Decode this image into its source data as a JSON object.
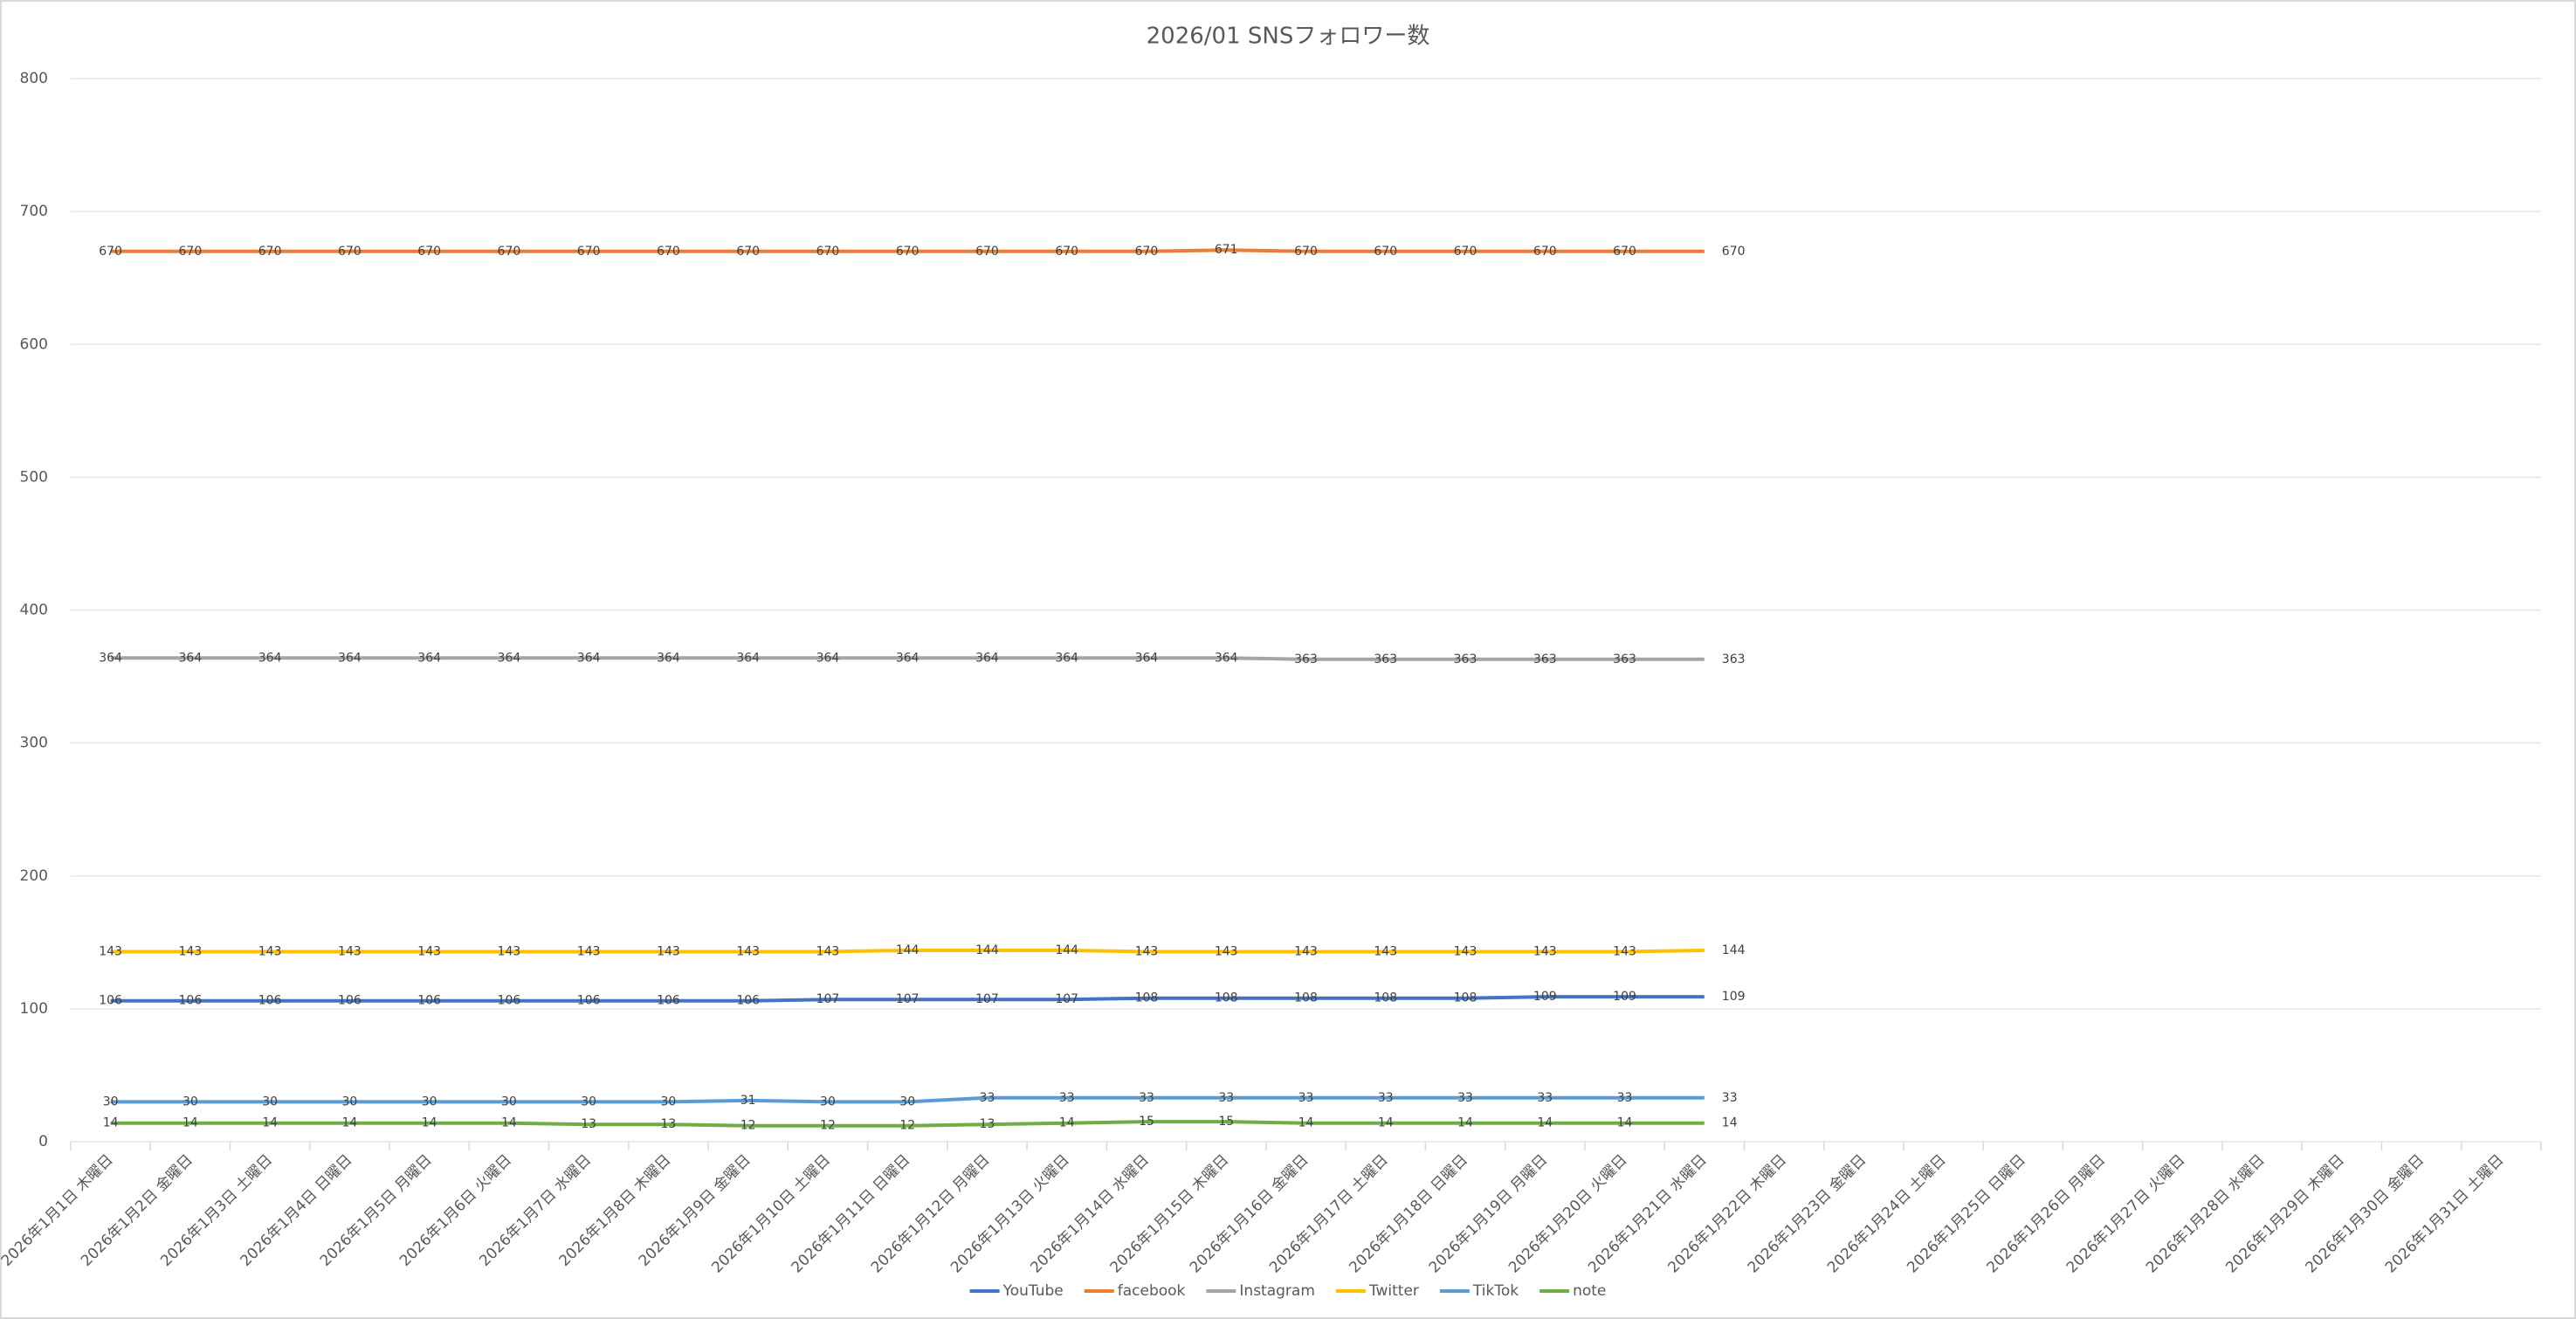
{
  "chart_data": {
    "type": "line",
    "title": "2026/01 SNSフォロワー数",
    "categories": [
      "2026年1月1日 木曜日",
      "2026年1月2日 金曜日",
      "2026年1月3日 土曜日",
      "2026年1月4日 日曜日",
      "2026年1月5日 月曜日",
      "2026年1月6日 火曜日",
      "2026年1月7日 水曜日",
      "2026年1月8日 木曜日",
      "2026年1月9日 金曜日",
      "2026年1月10日 土曜日",
      "2026年1月11日 日曜日",
      "2026年1月12日 月曜日",
      "2026年1月13日 火曜日",
      "2026年1月14日 水曜日",
      "2026年1月15日 木曜日",
      "2026年1月16日 金曜日",
      "2026年1月17日 土曜日",
      "2026年1月18日 日曜日",
      "2026年1月19日 月曜日",
      "2026年1月20日 火曜日",
      "2026年1月21日 水曜日",
      "2026年1月22日 木曜日",
      "2026年1月23日 金曜日",
      "2026年1月24日 土曜日",
      "2026年1月25日 日曜日",
      "2026年1月26日 月曜日",
      "2026年1月27日 火曜日",
      "2026年1月28日 水曜日",
      "2026年1月29日 木曜日",
      "2026年1月30日 金曜日",
      "2026年1月31日 土曜日"
    ],
    "series": [
      {
        "name": "YouTube",
        "color": "#4472c4",
        "values": [
          106,
          106,
          106,
          106,
          106,
          106,
          106,
          106,
          106,
          107,
          107,
          107,
          107,
          108,
          108,
          108,
          108,
          108,
          109,
          109,
          109,
          null,
          null,
          null,
          null,
          null,
          null,
          null,
          null,
          null,
          null
        ]
      },
      {
        "name": "facebook",
        "color": "#ed7d31",
        "values": [
          670,
          670,
          670,
          670,
          670,
          670,
          670,
          670,
          670,
          670,
          670,
          670,
          670,
          670,
          671,
          670,
          670,
          670,
          670,
          670,
          670,
          null,
          null,
          null,
          null,
          null,
          null,
          null,
          null,
          null,
          null
        ]
      },
      {
        "name": "Instagram",
        "color": "#a5a5a5",
        "values": [
          364,
          364,
          364,
          364,
          364,
          364,
          364,
          364,
          364,
          364,
          364,
          364,
          364,
          364,
          364,
          363,
          363,
          363,
          363,
          363,
          363,
          null,
          null,
          null,
          null,
          null,
          null,
          null,
          null,
          null,
          null
        ]
      },
      {
        "name": "Twitter",
        "color": "#ffc000",
        "values": [
          143,
          143,
          143,
          143,
          143,
          143,
          143,
          143,
          143,
          143,
          144,
          144,
          144,
          143,
          143,
          143,
          143,
          143,
          143,
          143,
          144,
          null,
          null,
          null,
          null,
          null,
          null,
          null,
          null,
          null,
          null
        ]
      },
      {
        "name": "TikTok",
        "color": "#5b9bd5",
        "values": [
          30,
          30,
          30,
          30,
          30,
          30,
          30,
          30,
          31,
          30,
          30,
          33,
          33,
          33,
          33,
          33,
          33,
          33,
          33,
          33,
          33,
          null,
          null,
          null,
          null,
          null,
          null,
          null,
          null,
          null,
          null
        ]
      },
      {
        "name": "note",
        "color": "#70ad47",
        "values": [
          14,
          14,
          14,
          14,
          14,
          14,
          13,
          13,
          12,
          12,
          12,
          13,
          14,
          15,
          15,
          14,
          14,
          14,
          14,
          14,
          14,
          null,
          null,
          null,
          null,
          null,
          null,
          null,
          null,
          null,
          null
        ]
      }
    ],
    "ylim": [
      0,
      800
    ],
    "yticks": [
      0,
      100,
      200,
      300,
      400,
      500,
      600,
      700,
      800
    ],
    "grid": true,
    "legend": "bottom"
  }
}
